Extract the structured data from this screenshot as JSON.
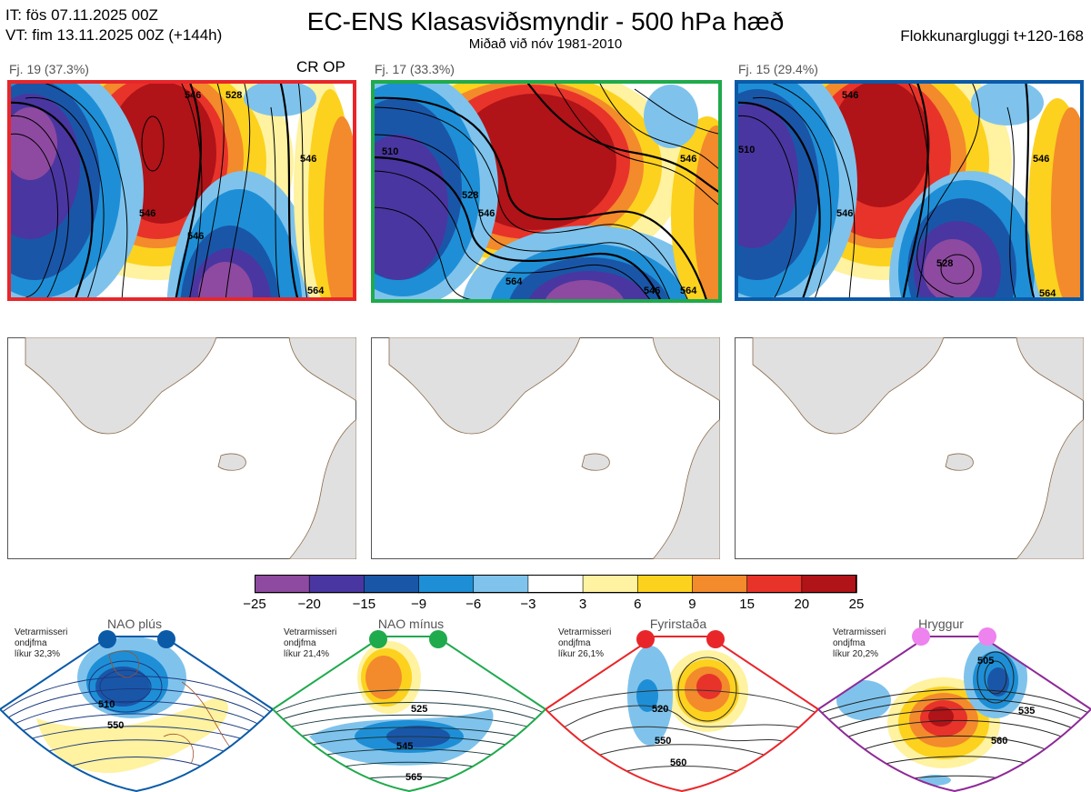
{
  "header": {
    "init_time": "IT: fös 07.11.2025 00Z",
    "valid_time": "VT: fim 13.11.2025 00Z  (+144h)",
    "title": "EC-ENS Klasasviðsmyndir - 500 hPa hæð",
    "subtitle": "Miðað við nóv 1981-2010",
    "window": "Flokkunargluggi t+120-168"
  },
  "clusters": [
    {
      "label": "Fj. 19 (37.3%)",
      "frame_color": "#e8262a",
      "extra": "CR OP",
      "contour_labels": [
        "546",
        "528",
        "546",
        "546",
        "546",
        "564"
      ]
    },
    {
      "label": "Fj. 17 (33.3%)",
      "frame_color": "#1faa4c",
      "extra": "",
      "contour_labels": [
        "510",
        "528",
        "546",
        "546",
        "564",
        "546",
        "564"
      ]
    },
    {
      "label": "Fj. 15 (29.4%)",
      "frame_color": "#0a5aa8",
      "extra": "",
      "contour_labels": [
        "510",
        "546",
        "546",
        "528",
        "546",
        "564"
      ]
    }
  ],
  "colorbar": {
    "ticks": [
      "−25",
      "−20",
      "−15",
      "−9",
      "−6",
      "−3",
      "3",
      "6",
      "9",
      "15",
      "20",
      "25"
    ],
    "colors": [
      "#8e4aa0",
      "#4a36a0",
      "#1a56a8",
      "#1e8fd6",
      "#7fc3ec",
      "#ffffff",
      "#fff2a0",
      "#fcd21e",
      "#f38a2c",
      "#e8332a",
      "#b01318"
    ]
  },
  "regimes": [
    {
      "name": "NAO plús",
      "season": "Vetrarmisseri",
      "word": "ondjfma",
      "prob": "líkur 32,3%",
      "color": "#0a5aa8",
      "labels": [
        "510",
        "550"
      ]
    },
    {
      "name": "NAO mínus",
      "season": "Vetrarmisseri",
      "word": "ondjfma",
      "prob": "líkur 21,4%",
      "color": "#1faa4c",
      "labels": [
        "525",
        "545",
        "565"
      ]
    },
    {
      "name": "Fyrirstaða",
      "season": "Vetrarmisseri",
      "word": "ondjfma",
      "prob": "líkur 26,1%",
      "color": "#e8262a",
      "labels": [
        "520",
        "550",
        "560"
      ]
    },
    {
      "name": "Hryggur",
      "season": "Vetrarmisseri",
      "word": "ondjfma",
      "prob": "líkur 20,2%",
      "color": "#8e2a98",
      "labels": [
        "505",
        "535",
        "560"
      ]
    }
  ]
}
